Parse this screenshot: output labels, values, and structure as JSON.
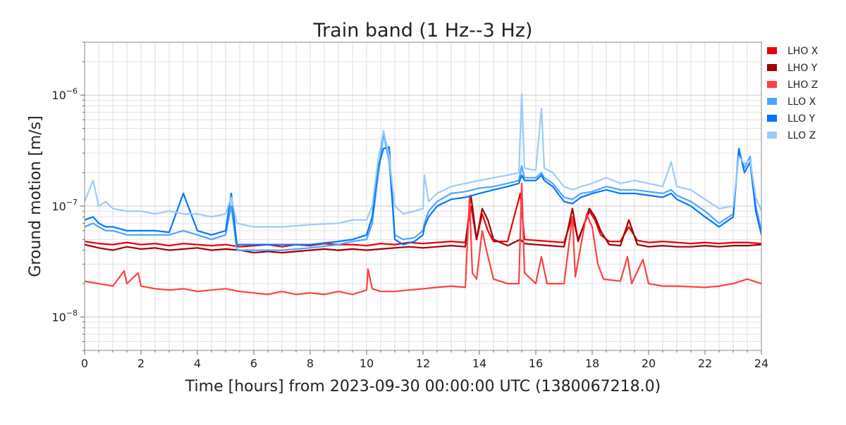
{
  "chart_data": {
    "type": "line",
    "title": "Train band (1 Hz--3 Hz)",
    "xlabel": "Time [hours] from 2023-09-30 00:00:00 UTC (1380067218.0)",
    "ylabel": "Ground motion [m/s]",
    "xlim": [
      0,
      24
    ],
    "ylim": [
      5e-09,
      3e-06
    ],
    "yscale": "log",
    "grid": true,
    "legend_position": "right-outside-top",
    "x_ticks": [
      "0",
      "2",
      "4",
      "6",
      "8",
      "10",
      "12",
      "14",
      "16",
      "18",
      "20",
      "22",
      "24"
    ],
    "y_ticks": [
      {
        "base": "10",
        "exp": "−8",
        "value": 1e-08
      },
      {
        "base": "10",
        "exp": "−7",
        "value": 1e-07
      },
      {
        "base": "10",
        "exp": "−6",
        "value": 1e-06
      }
    ],
    "series": [
      {
        "name": "LHO X",
        "color": "#ee0000",
        "x": [
          0,
          0.5,
          1,
          1.5,
          2,
          2.5,
          3,
          3.5,
          4,
          4.5,
          5,
          5.5,
          6,
          6.5,
          7,
          7.5,
          8,
          8.5,
          9,
          9.5,
          10,
          10.5,
          11,
          11.5,
          12,
          12.5,
          13,
          13.5,
          13.7,
          13.9,
          14.1,
          14.3,
          14.5,
          15,
          15.45,
          15.6,
          16,
          16.5,
          17,
          17.3,
          17.5,
          17.9,
          18.1,
          18.3,
          18.6,
          19,
          19.3,
          19.6,
          20,
          20.5,
          21,
          21.5,
          22,
          22.5,
          23,
          23.5,
          24
        ],
        "y": [
          4.8e-08,
          4.6e-08,
          4.5e-08,
          4.7e-08,
          4.5e-08,
          4.6e-08,
          4.4e-08,
          4.6e-08,
          4.5e-08,
          4.4e-08,
          4.5e-08,
          4.3e-08,
          4.4e-08,
          4.5e-08,
          4.3e-08,
          4.5e-08,
          4.4e-08,
          4.6e-08,
          4.5e-08,
          4.5e-08,
          4.4e-08,
          4.6e-08,
          4.5e-08,
          4.7e-08,
          4.6e-08,
          4.7e-08,
          4.8e-08,
          4.7e-08,
          1e-07,
          5e-08,
          8.5e-08,
          6e-08,
          4.8e-08,
          4.8e-08,
          1.3e-07,
          5e-08,
          4.9e-08,
          4.8e-08,
          4.7e-08,
          8e-08,
          5e-08,
          9e-08,
          7.5e-08,
          5.5e-08,
          4.8e-08,
          4.8e-08,
          6.5e-08,
          4.9e-08,
          4.7e-08,
          4.8e-08,
          4.7e-08,
          4.6e-08,
          4.7e-08,
          4.6e-08,
          4.7e-08,
          4.7e-08,
          4.6e-08
        ]
      },
      {
        "name": "LHO Y",
        "color": "#a30000",
        "x": [
          0,
          0.5,
          1,
          1.5,
          2,
          2.5,
          3,
          3.5,
          4,
          4.5,
          5,
          5.5,
          6,
          6.5,
          7,
          7.5,
          8,
          8.5,
          9,
          9.5,
          10,
          10.5,
          11,
          11.5,
          12,
          12.5,
          13,
          13.5,
          13.7,
          13.9,
          14.1,
          14.3,
          14.5,
          15,
          15.45,
          15.6,
          16,
          16.5,
          17,
          17.3,
          17.5,
          17.9,
          18.1,
          18.3,
          18.6,
          19,
          19.3,
          19.6,
          20,
          20.5,
          21,
          21.5,
          22,
          22.5,
          23,
          23.5,
          24
        ],
        "y": [
          4.5e-08,
          4.2e-08,
          4e-08,
          4.3e-08,
          4.1e-08,
          4.2e-08,
          4e-08,
          4.1e-08,
          4.2e-08,
          4e-08,
          4.1e-08,
          4e-08,
          3.8e-08,
          3.9e-08,
          3.8e-08,
          3.9e-08,
          4e-08,
          4.1e-08,
          4e-08,
          4.1e-08,
          4e-08,
          4.1e-08,
          4.2e-08,
          4.3e-08,
          4.2e-08,
          4.3e-08,
          4.4e-08,
          4.3e-08,
          1.25e-07,
          5e-08,
          9.5e-08,
          7.5e-08,
          5e-08,
          4.4e-08,
          5e-08,
          4.6e-08,
          4.5e-08,
          4.4e-08,
          4.3e-08,
          9.5e-08,
          4.8e-08,
          9.5e-08,
          8e-08,
          6e-08,
          4.5e-08,
          4.4e-08,
          7.5e-08,
          4.5e-08,
          4.3e-08,
          4.4e-08,
          4.3e-08,
          4.3e-08,
          4.4e-08,
          4.3e-08,
          4.4e-08,
          4.4e-08,
          4.5e-08
        ]
      },
      {
        "name": "LHO Z",
        "color": "#ff4040",
        "x": [
          0,
          0.5,
          1,
          1.4,
          1.5,
          1.9,
          2,
          2.5,
          3,
          3.5,
          4,
          4.5,
          5,
          5.5,
          6,
          6.5,
          7,
          7.5,
          8,
          8.5,
          9,
          9.5,
          10,
          10.05,
          10.2,
          10.5,
          11,
          11.5,
          12,
          12.5,
          13,
          13.5,
          13.65,
          13.75,
          13.9,
          14.1,
          14.25,
          14.5,
          15,
          15.4,
          15.5,
          15.6,
          16,
          16.2,
          16.4,
          17,
          17.3,
          17.4,
          17.8,
          18,
          18.2,
          18.4,
          19,
          19.25,
          19.4,
          19.8,
          20,
          20.5,
          21,
          22,
          22.5,
          23,
          23.5,
          24
        ],
        "y": [
          2.1e-08,
          2e-08,
          1.9e-08,
          2.6e-08,
          2e-08,
          2.5e-08,
          1.9e-08,
          1.8e-08,
          1.75e-08,
          1.8e-08,
          1.7e-08,
          1.75e-08,
          1.8e-08,
          1.7e-08,
          1.65e-08,
          1.6e-08,
          1.7e-08,
          1.6e-08,
          1.65e-08,
          1.6e-08,
          1.7e-08,
          1.6e-08,
          1.75e-08,
          2.7e-08,
          1.8e-08,
          1.7e-08,
          1.7e-08,
          1.75e-08,
          1.8e-08,
          1.85e-08,
          1.9e-08,
          1.85e-08,
          1.2e-07,
          2.5e-08,
          2.2e-08,
          6e-08,
          4e-08,
          2.2e-08,
          2e-08,
          2e-08,
          1.6e-07,
          2.5e-08,
          2e-08,
          3.5e-08,
          2e-08,
          2e-08,
          8e-08,
          2.3e-08,
          8.5e-08,
          6.5e-08,
          3e-08,
          2.2e-08,
          2.1e-08,
          3.5e-08,
          2e-08,
          3.3e-08,
          2e-08,
          1.9e-08,
          1.9e-08,
          1.85e-08,
          1.9e-08,
          2e-08,
          2.2e-08,
          2e-08
        ]
      },
      {
        "name": "LLO X",
        "color": "#4ba6ff",
        "x": [
          0,
          0.3,
          0.5,
          0.75,
          1,
          1.5,
          2,
          2.5,
          3,
          3.5,
          4,
          4.5,
          5,
          5.2,
          5.4,
          6,
          7,
          8,
          9,
          9.5,
          10,
          10.2,
          10.4,
          10.6,
          10.8,
          11,
          11.3,
          11.7,
          12,
          12.05,
          12.2,
          12.5,
          13,
          13.5,
          14,
          14.5,
          15,
          15.4,
          15.5,
          15.6,
          16,
          16.2,
          16.3,
          16.6,
          17,
          17.3,
          17.6,
          18,
          18.5,
          19,
          19.5,
          20,
          20.5,
          20.8,
          21,
          21.5,
          22,
          22.5,
          23,
          23.2,
          23.4,
          23.6,
          23.8,
          24
        ],
        "y": [
          6.5e-08,
          7e-08,
          6.5e-08,
          6e-08,
          6e-08,
          5.5e-08,
          5.5e-08,
          5.5e-08,
          5.5e-08,
          6e-08,
          5.5e-08,
          5e-08,
          5.5e-08,
          1e-07,
          4e-08,
          4e-08,
          4e-08,
          4.2e-08,
          4.5e-08,
          4.8e-08,
          5e-08,
          7e-08,
          1.8e-07,
          4.5e-07,
          2.5e-07,
          5.5e-08,
          5e-08,
          5.2e-08,
          6e-08,
          7e-08,
          9e-08,
          1.1e-07,
          1.3e-07,
          1.35e-07,
          1.45e-07,
          1.5e-07,
          1.6e-07,
          1.7e-07,
          2.3e-07,
          1.8e-07,
          1.8e-07,
          2e-07,
          1.8e-07,
          1.6e-07,
          1.2e-07,
          1.15e-07,
          1.3e-07,
          1.35e-07,
          1.5e-07,
          1.4e-07,
          1.4e-07,
          1.35e-07,
          1.3e-07,
          1.4e-07,
          1.25e-07,
          1.1e-07,
          9e-08,
          7e-08,
          8.5e-08,
          3e-07,
          2.2e-07,
          2.8e-07,
          1e-07,
          6e-08
        ]
      },
      {
        "name": "LLO Y",
        "color": "#0077ff",
        "x": [
          0,
          0.3,
          0.5,
          0.75,
          1,
          1.5,
          2,
          2.5,
          3,
          3.5,
          4,
          4.5,
          5,
          5.2,
          5.4,
          6,
          7,
          8,
          9,
          9.5,
          10,
          10.2,
          10.4,
          10.6,
          10.8,
          11,
          11.3,
          11.7,
          12,
          12.05,
          12.2,
          12.5,
          13,
          13.5,
          14,
          14.5,
          15,
          15.4,
          15.5,
          15.6,
          16,
          16.2,
          16.3,
          16.6,
          17,
          17.3,
          17.6,
          18,
          18.5,
          19,
          19.5,
          20,
          20.5,
          20.8,
          21,
          21.5,
          22,
          22.5,
          23,
          23.2,
          23.4,
          23.6,
          23.8,
          24
        ],
        "y": [
          7.5e-08,
          8e-08,
          7e-08,
          6.5e-08,
          6.5e-08,
          6e-08,
          6e-08,
          6e-08,
          5.8e-08,
          1.3e-07,
          6e-08,
          5.5e-08,
          6e-08,
          1.3e-07,
          4.5e-08,
          4.5e-08,
          4.5e-08,
          4.5e-08,
          4.8e-08,
          5e-08,
          5.5e-08,
          8e-08,
          2.2e-07,
          3.3e-07,
          3.4e-07,
          5e-08,
          4.5e-08,
          4.8e-08,
          5.5e-08,
          6.5e-08,
          8e-08,
          1e-07,
          1.15e-07,
          1.2e-07,
          1.3e-07,
          1.4e-07,
          1.5e-07,
          1.6e-07,
          1.9e-07,
          1.7e-07,
          1.7e-07,
          1.9e-07,
          1.7e-07,
          1.5e-07,
          1.1e-07,
          1.05e-07,
          1.2e-07,
          1.3e-07,
          1.4e-07,
          1.3e-07,
          1.3e-07,
          1.25e-07,
          1.2e-07,
          1.3e-07,
          1.15e-07,
          1e-07,
          8e-08,
          6.5e-08,
          8e-08,
          3.3e-07,
          2e-07,
          2.5e-07,
          9e-08,
          5.5e-08
        ]
      },
      {
        "name": "LLO Z",
        "color": "#9ccaff",
        "x": [
          0,
          0.3,
          0.5,
          0.75,
          1,
          1.5,
          2,
          2.5,
          3,
          3.5,
          4,
          4.5,
          5,
          5.2,
          5.4,
          6,
          7,
          8,
          9,
          9.5,
          10,
          10.2,
          10.4,
          10.6,
          10.8,
          11,
          11.3,
          11.7,
          12,
          12.05,
          12.2,
          12.5,
          13,
          13.5,
          14,
          14.5,
          15,
          15.4,
          15.5,
          15.6,
          16,
          16.2,
          16.3,
          16.6,
          17,
          17.3,
          17.6,
          18,
          18.5,
          19,
          19.5,
          20,
          20.5,
          20.8,
          21,
          21.5,
          22,
          22.5,
          23,
          23.2,
          23.4,
          23.6,
          23.8,
          24
        ],
        "y": [
          1.1e-07,
          1.7e-07,
          1e-07,
          1.1e-07,
          9.5e-08,
          9e-08,
          9e-08,
          8.5e-08,
          9e-08,
          8.5e-08,
          8.5e-08,
          8e-08,
          8.5e-08,
          1.2e-07,
          7e-08,
          6.5e-08,
          6.5e-08,
          6.8e-08,
          7e-08,
          7.5e-08,
          7.5e-08,
          1e-07,
          2.5e-07,
          4.8e-07,
          2.8e-07,
          1e-07,
          8.5e-08,
          9e-08,
          9.5e-08,
          1.9e-07,
          1.1e-07,
          1.3e-07,
          1.5e-07,
          1.6e-07,
          1.7e-07,
          1.8e-07,
          1.9e-07,
          2e-07,
          1.03e-06,
          2.2e-07,
          2.1e-07,
          7.6e-07,
          2.2e-07,
          2e-07,
          1.5e-07,
          1.4e-07,
          1.5e-07,
          1.6e-07,
          1.8e-07,
          1.6e-07,
          1.7e-07,
          1.6e-07,
          1.5e-07,
          2.5e-07,
          1.5e-07,
          1.4e-07,
          1.15e-07,
          9.5e-08,
          1e-07,
          2.8e-07,
          2.4e-07,
          2.6e-07,
          1.2e-07,
          9e-08
        ]
      }
    ]
  }
}
